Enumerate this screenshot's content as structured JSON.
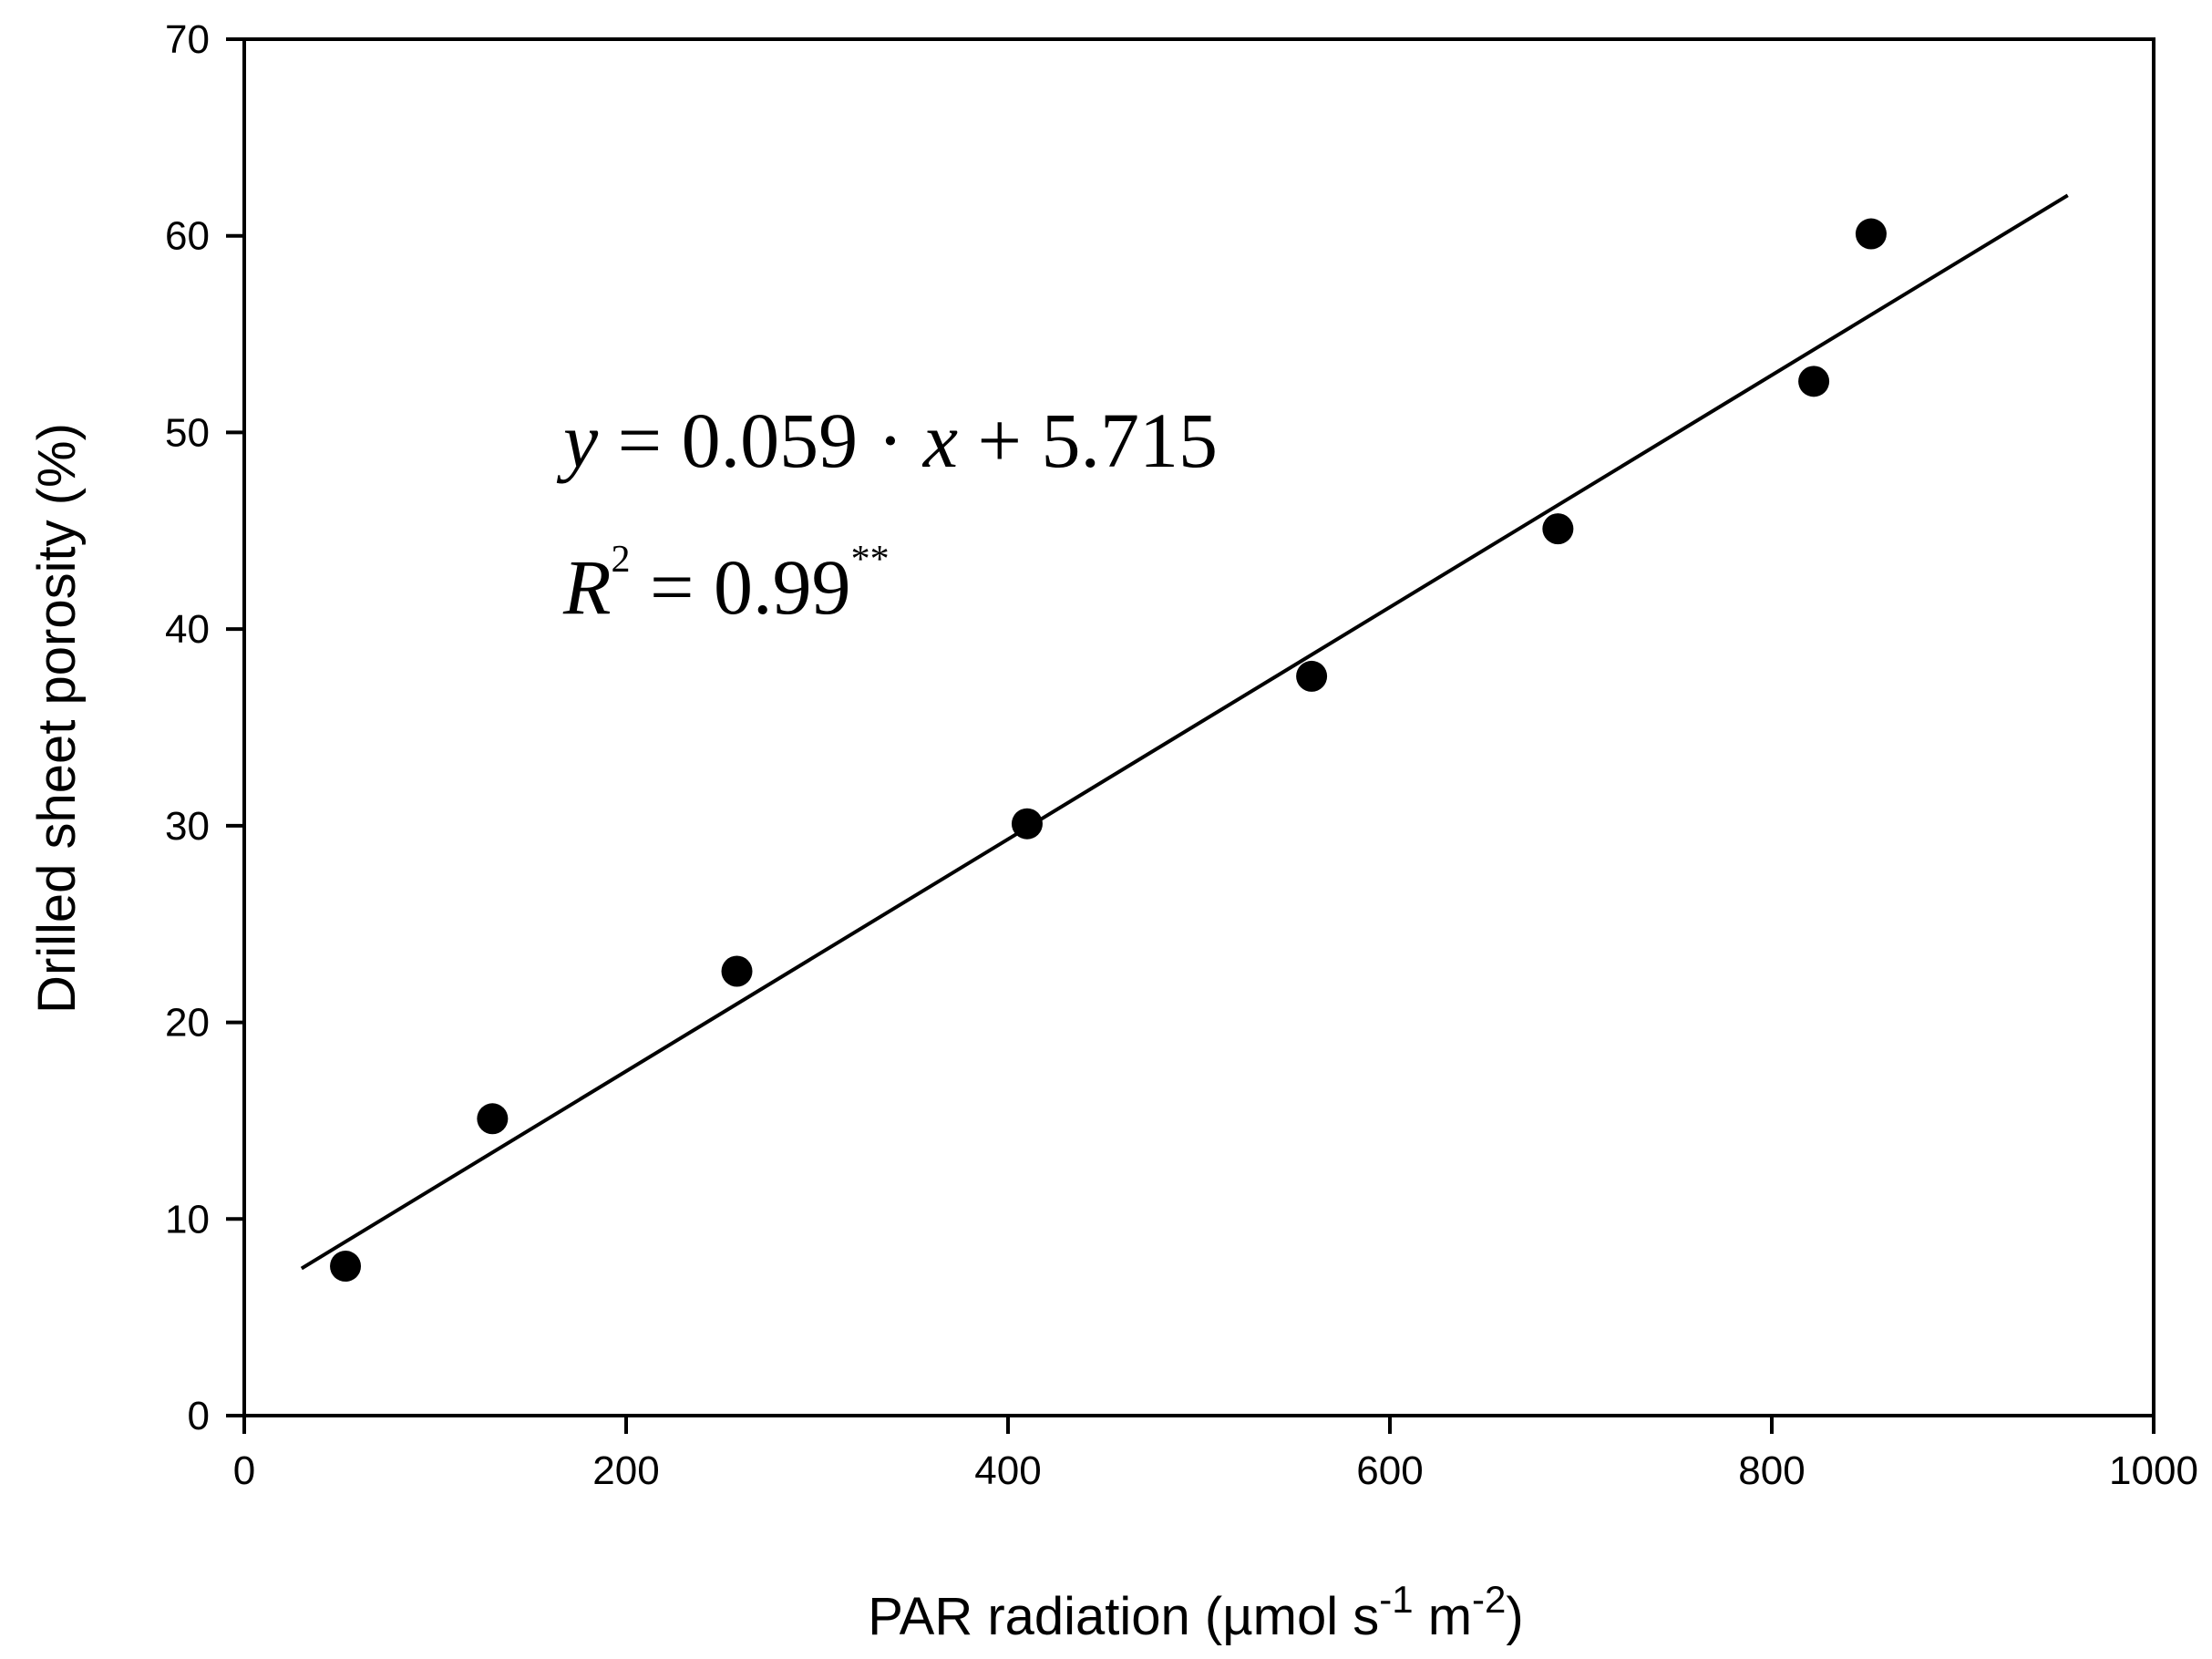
{
  "chart_data": {
    "type": "scatter",
    "title": "",
    "xlabel": {
      "main": "PAR radiation (µmol s",
      "sup1": "-1",
      "mid": " m",
      "sup2": "-2",
      "end": ")"
    },
    "ylabel": "Drilled sheet porosity (%)",
    "xlim": [
      0,
      1000
    ],
    "ylim": [
      0,
      70
    ],
    "xticks": [
      "0",
      "200",
      "400",
      "600",
      "800",
      "1000"
    ],
    "yticks": [
      "0",
      "10",
      "20",
      "30",
      "40",
      "50",
      "60",
      "70"
    ],
    "grid": false,
    "legend": "none",
    "series": [
      {
        "points": [
          {
            "x": 53,
            "y": 7.6
          },
          {
            "x": 130,
            "y": 15.1
          },
          {
            "x": 258,
            "y": 22.6
          },
          {
            "x": 410,
            "y": 30.1
          },
          {
            "x": 559,
            "y": 37.6
          },
          {
            "x": 688,
            "y": 45.1
          },
          {
            "x": 822,
            "y": 52.6
          },
          {
            "x": 852,
            "y": 60.1
          }
        ]
      }
    ],
    "fit": {
      "slope": 0.059,
      "intercept": 5.715,
      "x_range": [
        30,
        955
      ]
    },
    "annotations": {
      "eq_y": "y",
      "eq_mid": " = 0.059 · ",
      "eq_x": "x",
      "eq_end": " + 5.715",
      "r_letter": "R",
      "r_sup": "2",
      "r_value": " = 0.99",
      "r_sig": "**"
    },
    "colors": {
      "marker": "#000000",
      "line": "#000000",
      "axis": "#000000"
    }
  }
}
